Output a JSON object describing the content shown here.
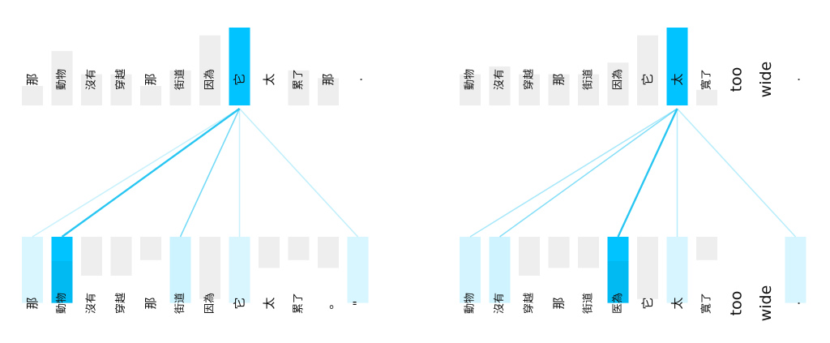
{
  "colors": {
    "bar_bg": "#eeeeee",
    "active": "#00c3ff",
    "active_dark": "#00a8d8",
    "link": "#29c6f2",
    "text": "#111111"
  },
  "panels": [
    {
      "id": "left",
      "top_tokens": [
        {
          "text": "那",
          "bar": 0.25,
          "active": false
        },
        {
          "text": "動物",
          "bar": 0.7,
          "active": false
        },
        {
          "text": "沒有",
          "bar": 0.4,
          "active": false
        },
        {
          "text": "穿越",
          "bar": 0.4,
          "active": false
        },
        {
          "text": "那",
          "bar": 0.25,
          "active": false
        },
        {
          "text": "街道",
          "bar": 0.45,
          "active": false
        },
        {
          "text": "因為",
          "bar": 0.9,
          "active": false
        },
        {
          "text": "它",
          "bar": 1.0,
          "active": true
        },
        {
          "text": "太",
          "bar": 0.0,
          "active": false
        },
        {
          "text": "累了",
          "bar": 0.45,
          "active": false
        },
        {
          "text": "那",
          "bar": 0.35,
          "active": false
        },
        {
          "text": ".",
          "bar": 0.0,
          "active": false
        }
      ],
      "bottom_tokens": [
        {
          "text": "那",
          "bar": 0.85,
          "weight": 0.15
        },
        {
          "text": "動物",
          "bar": 0.85,
          "weight": 1.0
        },
        {
          "text": "沒有",
          "bar": 0.5,
          "weight": 0.0
        },
        {
          "text": "穿越",
          "bar": 0.5,
          "weight": 0.0
        },
        {
          "text": "那",
          "bar": 0.3,
          "weight": 0.0
        },
        {
          "text": "街道",
          "bar": 0.85,
          "weight": 0.4
        },
        {
          "text": "因為",
          "bar": 0.8,
          "weight": 0.0
        },
        {
          "text": "它",
          "bar": 0.85,
          "weight": 0.15
        },
        {
          "text": "太",
          "bar": 0.4,
          "weight": 0.0
        },
        {
          "text": "累了",
          "bar": 0.3,
          "weight": 0.0
        },
        {
          "text": "。",
          "bar": 0.4,
          "weight": 0.0
        },
        {
          "text": "\"",
          "bar": 0.85,
          "weight": 0.18
        }
      ]
    },
    {
      "id": "right",
      "top_tokens": [
        {
          "text": "動物",
          "bar": 0.4,
          "active": false
        },
        {
          "text": "沒有",
          "bar": 0.5,
          "active": false
        },
        {
          "text": "穿越",
          "bar": 0.4,
          "active": false
        },
        {
          "text": "那",
          "bar": 0.4,
          "active": false
        },
        {
          "text": "街道",
          "bar": 0.4,
          "active": false
        },
        {
          "text": "因為",
          "bar": 0.55,
          "active": false
        },
        {
          "text": "它",
          "bar": 0.9,
          "active": false
        },
        {
          "text": "太",
          "bar": 1.0,
          "active": true
        },
        {
          "text": "寬了",
          "bar": 0.2,
          "active": false
        },
        {
          "text": "too",
          "bar": 0.0,
          "active": false
        },
        {
          "text": "wide",
          "bar": 0.0,
          "active": false
        },
        {
          "text": ".",
          "bar": 0.0,
          "active": false
        }
      ],
      "bottom_tokens": [
        {
          "text": "動物",
          "bar": 0.85,
          "weight": 0.25
        },
        {
          "text": "沒有",
          "bar": 0.85,
          "weight": 0.35
        },
        {
          "text": "穿越",
          "bar": 0.5,
          "weight": 0.0
        },
        {
          "text": "那",
          "bar": 0.4,
          "weight": 0.0
        },
        {
          "text": "街道",
          "bar": 0.4,
          "weight": 0.0
        },
        {
          "text": "医為",
          "bar": 0.85,
          "weight": 1.0
        },
        {
          "text": "它",
          "bar": 0.8,
          "weight": 0.0
        },
        {
          "text": "太",
          "bar": 0.85,
          "weight": 0.2
        },
        {
          "text": "寬了",
          "bar": 0.3,
          "weight": 0.0
        },
        {
          "text": "too",
          "bar": 0.0,
          "weight": 0.0
        },
        {
          "text": "wide",
          "bar": 0.0,
          "weight": 0.0
        },
        {
          "text": ".",
          "bar": 0.85,
          "weight": 0.2
        }
      ]
    }
  ]
}
